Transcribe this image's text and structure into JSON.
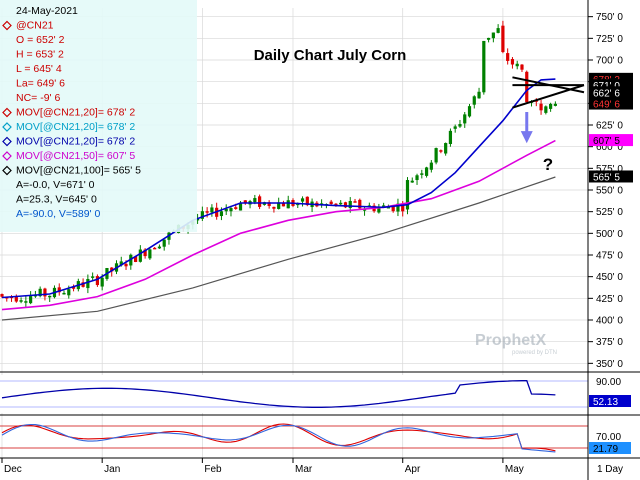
{
  "chart_data": [
    {
      "type": "candlestick",
      "title": "Daily Chart July Corn",
      "symbol": "@CN21",
      "date": "24-May-2021",
      "ohlc": {
        "O": "652' 2",
        "H": "653' 2",
        "L": "645' 4",
        "La": "649' 6",
        "NC": "-9' 6"
      },
      "info_lines": [
        {
          "text": "24-May-2021",
          "color": "#000000",
          "marker": "none"
        },
        {
          "text": "@CN21",
          "color": "#cc0000",
          "marker": "diamond"
        },
        {
          "text": "O = 652' 2",
          "color": "#cc0000",
          "marker": "none"
        },
        {
          "text": "H = 653' 2",
          "color": "#cc0000",
          "marker": "none"
        },
        {
          "text": "L = 645' 4",
          "color": "#cc0000",
          "marker": "none"
        },
        {
          "text": "La= 649' 6",
          "color": "#cc0000",
          "marker": "none"
        },
        {
          "text": "NC= -9' 6",
          "color": "#cc0000",
          "marker": "none"
        },
        {
          "text": "MOV[@CN21,20]= 678' 2",
          "color": "#cc0000",
          "marker": "diamond"
        },
        {
          "text": "MOV[@CN21,20]= 678' 2",
          "color": "#00a0c8",
          "marker": "diamond"
        },
        {
          "text": "MOV[@CN21,20]= 678' 2",
          "color": "#0000aa",
          "marker": "diamond"
        },
        {
          "text": "MOV[@CN21,50]= 607' 5",
          "color": "#cc00cc",
          "marker": "diamond"
        },
        {
          "text": "MOV[@CN21,100]= 565' 5",
          "color": "#000000",
          "marker": "diamond"
        },
        {
          "text": "A=-0.0, V=671' 0",
          "color": "#000000",
          "marker": "none"
        },
        {
          "text": "A=25.3, V=645' 0",
          "color": "#000000",
          "marker": "none"
        },
        {
          "text": "A=-90.0, V=589' 0",
          "color": "#0055cc",
          "marker": "none"
        }
      ],
      "y_ticks": [
        "750' 0",
        "725' 0",
        "700' 0",
        "675' 0",
        "650' 0",
        "625' 0",
        "600' 0",
        "575' 0",
        "550' 0",
        "525' 0",
        "500' 0",
        "475' 0",
        "450' 0",
        "425' 0",
        "400' 0",
        "375' 0",
        "350' 0"
      ],
      "price_range": [
        340,
        760
      ],
      "x_labels": [
        {
          "label": "Dec",
          "day": 0
        },
        {
          "label": "Jan",
          "day": 21
        },
        {
          "label": "Feb",
          "day": 42
        },
        {
          "label": "Mar",
          "day": 61
        },
        {
          "label": "Apr",
          "day": 84
        },
        {
          "label": "May",
          "day": 105
        }
      ],
      "price_tags": [
        {
          "text": "678' 2",
          "value": 678.25,
          "bg": "#000000",
          "fg": "#ff3333"
        },
        {
          "text": "671' 0",
          "value": 671,
          "bg": "#000000",
          "fg": "#ffffff"
        },
        {
          "text": "662' 6",
          "value": 662.75,
          "bg": "#000000",
          "fg": "#ffffff"
        },
        {
          "text": "649' 6",
          "value": 649.75,
          "bg": "#000000",
          "fg": "#ff3333"
        },
        {
          "text": "607' 5",
          "value": 607.6,
          "bg": "#ff00ff",
          "fg": "#000000"
        },
        {
          "text": "565' 5",
          "value": 565.6,
          "bg": "#000000",
          "fg": "#ffffff"
        }
      ],
      "ma20": [
        [
          0,
          426
        ],
        [
          10,
          430
        ],
        [
          20,
          447
        ],
        [
          30,
          480
        ],
        [
          40,
          515
        ],
        [
          50,
          535
        ],
        [
          60,
          535
        ],
        [
          70,
          532
        ],
        [
          80,
          530
        ],
        [
          85,
          533
        ],
        [
          90,
          547
        ],
        [
          95,
          570
        ],
        [
          100,
          600
        ],
        [
          105,
          630
        ],
        [
          110,
          665
        ],
        [
          113,
          677
        ],
        [
          116,
          678
        ]
      ],
      "ma50": [
        [
          0,
          412
        ],
        [
          10,
          417
        ],
        [
          20,
          427
        ],
        [
          30,
          447
        ],
        [
          40,
          475
        ],
        [
          50,
          500
        ],
        [
          60,
          515
        ],
        [
          70,
          525
        ],
        [
          80,
          530
        ],
        [
          90,
          540
        ],
        [
          100,
          560
        ],
        [
          110,
          590
        ],
        [
          116,
          607
        ]
      ],
      "ma100": [
        [
          0,
          400
        ],
        [
          20,
          410
        ],
        [
          40,
          437
        ],
        [
          60,
          470
        ],
        [
          80,
          500
        ],
        [
          100,
          535
        ],
        [
          116,
          565
        ]
      ],
      "trend_lines": [
        {
          "from": [
            107,
            671
          ],
          "to": [
            122,
            671
          ],
          "color": "#000000"
        },
        {
          "from": [
            107,
            645
          ],
          "to": [
            122,
            671
          ],
          "color": "#000000"
        },
        {
          "from": [
            107,
            680
          ],
          "to": [
            122,
            662.75
          ],
          "color": "#000000"
        }
      ],
      "annotations": {
        "arrow_color": "#7777ee",
        "question_mark": "?"
      },
      "watermark": {
        "brand": "ProphetX",
        "sub": "powered by DTN"
      },
      "indicator1": {
        "axis_label": "90.00",
        "value_label": "52.13",
        "range": [
          0,
          100
        ]
      },
      "indicator2": {
        "axis_label": "70.00",
        "value_label": "21.79",
        "range": [
          0,
          100
        ]
      },
      "interval_label": "1 Day"
    }
  ]
}
